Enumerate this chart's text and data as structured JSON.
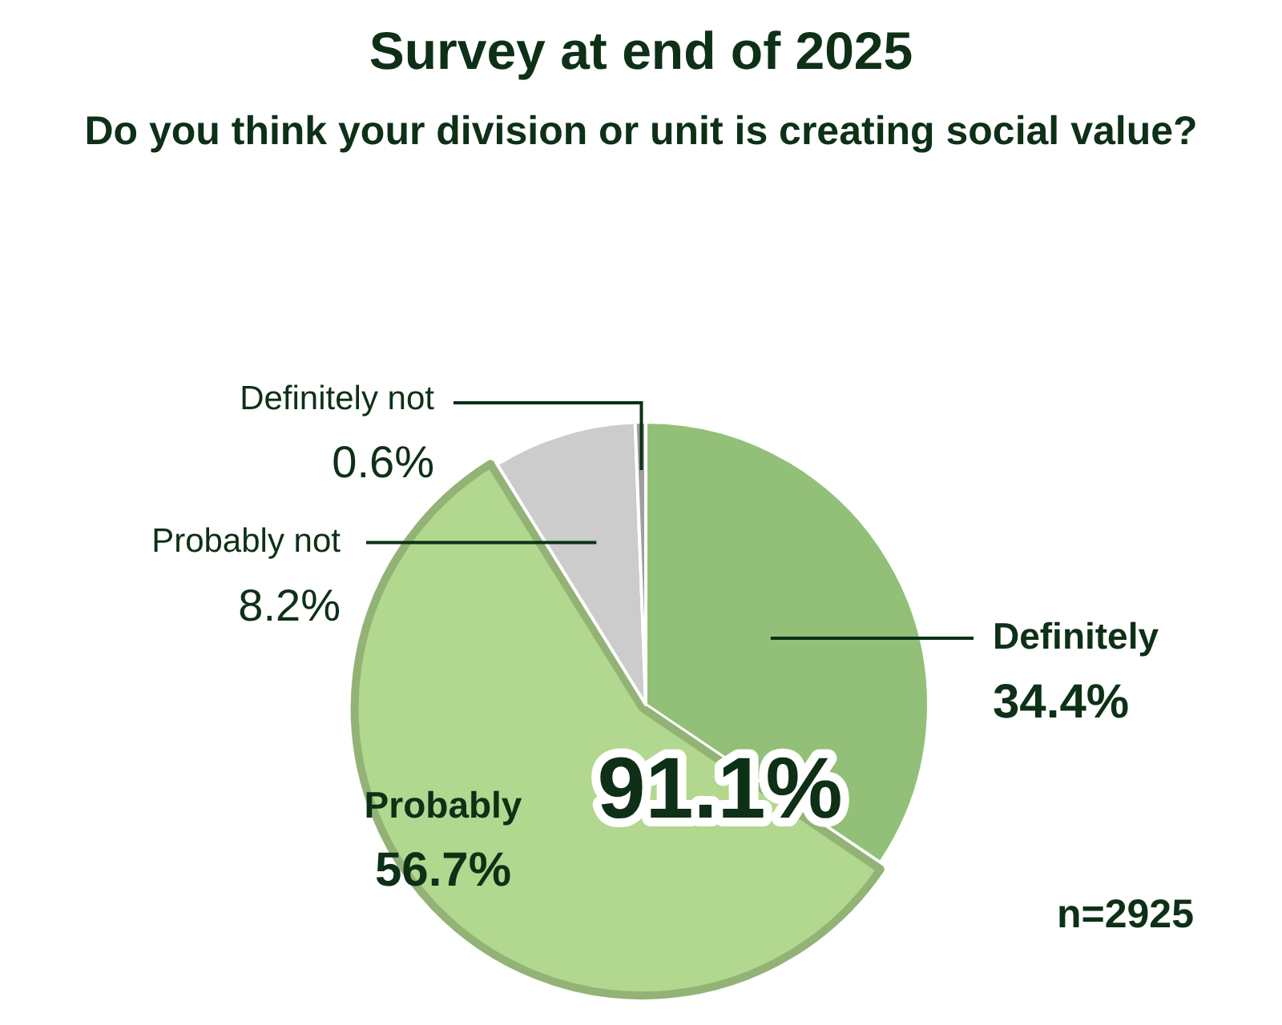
{
  "chart_data": {
    "type": "pie",
    "title": "Survey at end of 2025",
    "subtitle": "Do you think your division or unit is creating social value?",
    "categories": [
      "Definitely",
      "Probably",
      "Probably not",
      "Definitely not"
    ],
    "values": [
      34.4,
      56.7,
      8.2,
      0.6
    ],
    "colors": [
      "#92c078",
      "#b1d88e",
      "#cccccc",
      "#9e9e9e"
    ],
    "value_labels": [
      "34.4%",
      "56.7%",
      "8.2%",
      "0.6%"
    ],
    "annotations": [
      "91.1%",
      "n=2925"
    ]
  }
}
